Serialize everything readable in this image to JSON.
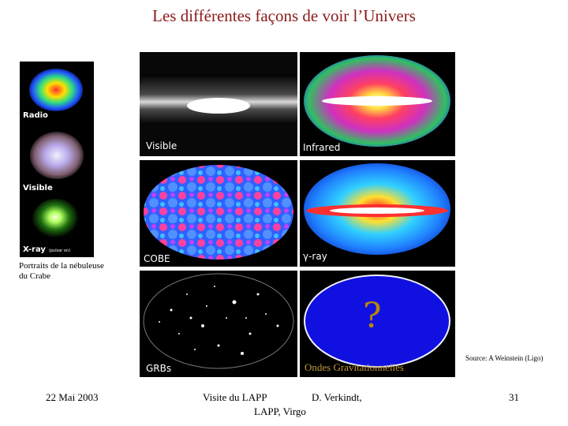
{
  "slide": {
    "title": "Les différentes façons de voir l’Univers",
    "crab": {
      "labels": [
        "Radio",
        "Visible",
        "X-ray"
      ],
      "xray_note": "(pulsar on)",
      "caption": "Portraits de la nébuleuse du Crabe"
    },
    "maps": {
      "visible": "Visible",
      "infrared": "Infrared",
      "cobe": "COBE",
      "gamma": "γ-ray",
      "grbs": "GRBs",
      "gw_question": "?",
      "gw_label": "Ondes Gravitationnelles"
    },
    "source": "Source: A Weinstein (Ligo)",
    "footer": {
      "date": "22 Mai 2003",
      "event": "Visite du LAPP",
      "author": "D. Verkindt,",
      "affiliation": "LAPP, Virgo",
      "page": "31"
    }
  }
}
